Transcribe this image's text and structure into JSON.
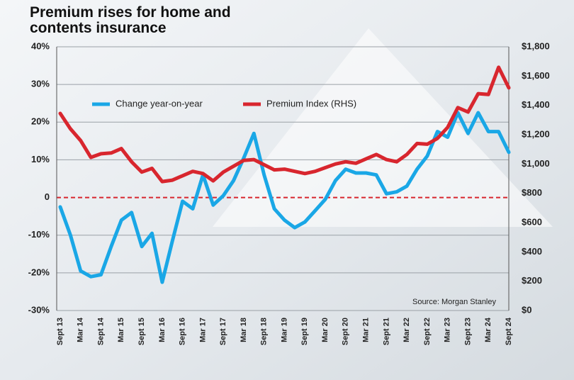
{
  "chart_data": {
    "type": "line",
    "title": [
      "Premium rises for home and",
      "contents insurance"
    ],
    "annotation": "Source: Morgan Stanley",
    "categories": [
      "Sept 13",
      null,
      "Mar 14",
      null,
      "Sept 14",
      null,
      "Mar 15",
      null,
      "Sept 15",
      null,
      "Mar 16",
      null,
      "Sept 16",
      null,
      "Mar 17",
      null,
      "Sept 17",
      null,
      "Mar 18",
      null,
      "Sept 18",
      null,
      "Mar 19",
      null,
      "Sept 19",
      null,
      "Mar 20",
      null,
      "Sept 20",
      null,
      "Mar 21",
      null,
      "Sept 21",
      null,
      "Mar 22",
      null,
      "Sept 22",
      null,
      "Mar 23",
      null,
      "Sept 23",
      null,
      "Mar 24",
      null,
      "Sept 24"
    ],
    "series": [
      {
        "name": "Change year-on-year",
        "color": "#1aa7e6",
        "axis": "y",
        "values": [
          -2.5,
          -10,
          -19.5,
          -21,
          -20.5,
          -13,
          -6,
          -4,
          -13,
          -9.5,
          -22.5,
          -11.5,
          -1,
          -3,
          6,
          -2,
          0.5,
          4.5,
          10.5,
          17,
          6,
          -3,
          -6,
          -8,
          -6.5,
          -3.5,
          -0.5,
          4.5,
          7.5,
          6.5,
          6.5,
          6,
          1,
          1.5,
          3,
          7.5,
          11,
          17.5,
          16,
          22.5,
          17,
          22.5,
          17.5,
          17.5,
          12
        ]
      },
      {
        "name": "Premium Index (RHS)",
        "color": "#d8262e",
        "axis": "y2",
        "values": [
          1345,
          1240,
          1160,
          1045,
          1070,
          1075,
          1105,
          1015,
          945,
          970,
          880,
          890,
          920,
          950,
          935,
          885,
          945,
          985,
          1025,
          1030,
          995,
          960,
          965,
          950,
          935,
          950,
          975,
          1000,
          1015,
          1005,
          1035,
          1065,
          1030,
          1015,
          1065,
          1140,
          1135,
          1175,
          1250,
          1385,
          1355,
          1480,
          1475,
          1660,
          1520
        ]
      }
    ],
    "ylim": [
      -30,
      40
    ],
    "yticks": [
      {
        "value": -30,
        "label": "-30%"
      },
      {
        "value": -20,
        "label": "-20%"
      },
      {
        "value": -10,
        "label": "-10%"
      },
      0,
      {
        "value": 10,
        "label": "10%"
      },
      {
        "value": 20,
        "label": "20%"
      },
      {
        "value": 30,
        "label": "30%"
      },
      {
        "value": 40,
        "label": "40%"
      }
    ],
    "y2lim": [
      0,
      1800
    ],
    "y2ticks": [
      {
        "value": 0,
        "label": "$0"
      },
      {
        "value": 200,
        "label": "$200"
      },
      {
        "value": 400,
        "label": "$400"
      },
      {
        "value": 600,
        "label": "$600"
      },
      {
        "value": 800,
        "label": "$800"
      },
      {
        "value": 1000,
        "label": "$1,000"
      },
      {
        "value": 1200,
        "label": "$1,200"
      },
      {
        "value": 1400,
        "label": "$1,400"
      },
      {
        "value": 1600,
        "label": "$1,600"
      },
      {
        "value": 1800,
        "label": "$1,800"
      }
    ],
    "grid": true
  }
}
